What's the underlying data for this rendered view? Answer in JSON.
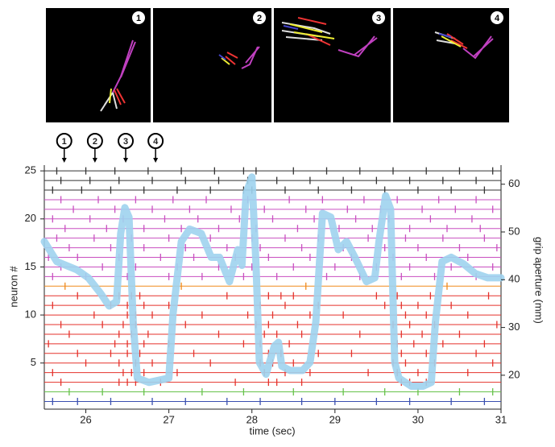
{
  "chart_data": {
    "type": "raster",
    "panels": [
      "1",
      "2",
      "3",
      "4"
    ],
    "events": [
      {
        "label": "1",
        "time": 25.74
      },
      {
        "label": "2",
        "time": 26.11
      },
      {
        "label": "3",
        "time": 26.48
      },
      {
        "label": "4",
        "time": 26.84
      }
    ],
    "xlabel": "time (sec)",
    "ylabel": "neuron #",
    "y2label": "grip aperture (mm)",
    "xlim": [
      25.5,
      31
    ],
    "xticks": [
      26,
      27,
      28,
      29,
      30,
      31
    ],
    "ylim": [
      0.2,
      25.6
    ],
    "yticks": [
      5,
      10,
      15,
      20,
      25
    ],
    "y2lim": [
      12.9,
      64
    ],
    "y2ticks": [
      20,
      30,
      40,
      50,
      60
    ],
    "neurons": [
      {
        "color": "#3a4fb0",
        "spikes": [
          25.6,
          25.9,
          26.3,
          26.8,
          27.2,
          27.7,
          28.1,
          28.6,
          29.0,
          29.5,
          29.9,
          30.4,
          30.8
        ]
      },
      {
        "color": "#66c24a",
        "spikes": [
          25.8,
          26.2,
          26.7,
          27.4,
          27.9,
          28.5,
          29.1,
          29.6,
          30.0,
          30.5,
          30.9
        ]
      },
      {
        "color": "#e5322b",
        "spikes": [
          25.7,
          26.4,
          26.5,
          26.6,
          26.9,
          27.8,
          28.2,
          28.3,
          28.6,
          29.8,
          29.9,
          30.1
        ]
      },
      {
        "color": "#e5322b",
        "spikes": [
          25.6,
          26.45,
          26.55,
          26.7,
          27.1,
          28.15,
          28.4,
          28.7,
          29.4,
          29.75,
          30.0,
          30.6
        ]
      },
      {
        "color": "#e5322b",
        "spikes": [
          26.0,
          26.4,
          26.6,
          26.8,
          27.5,
          28.1,
          28.25,
          28.5,
          29.7,
          29.85,
          30.2,
          30.9
        ]
      },
      {
        "color": "#e5322b",
        "spikes": [
          25.9,
          26.3,
          26.5,
          26.65,
          27.3,
          28.2,
          28.35,
          28.8,
          29.2,
          29.8,
          30.1,
          30.7
        ]
      },
      {
        "color": "#e5322b",
        "spikes": [
          25.55,
          26.35,
          26.5,
          26.7,
          27.0,
          27.9,
          28.1,
          28.45,
          29.75,
          29.95,
          30.3,
          30.8
        ]
      },
      {
        "color": "#e5322b",
        "spikes": [
          25.8,
          26.4,
          26.55,
          26.75,
          27.6,
          28.15,
          28.3,
          28.6,
          29.3,
          29.8,
          30.05,
          30.5
        ]
      },
      {
        "color": "#e5322b",
        "spikes": [
          25.7,
          26.2,
          26.45,
          26.6,
          27.2,
          28.05,
          28.2,
          28.55,
          29.7,
          29.9,
          30.2,
          30.95
        ]
      },
      {
        "color": "#e5322b",
        "spikes": [
          26.1,
          26.5,
          26.6,
          26.8,
          27.4,
          27.95,
          28.25,
          28.7,
          29.1,
          29.85,
          30.1,
          30.6
        ]
      },
      {
        "color": "#e5322b",
        "spikes": [
          25.6,
          26.3,
          26.5,
          26.7,
          27.0,
          28.1,
          28.4,
          28.8,
          29.6,
          29.8,
          30.0,
          30.4
        ]
      },
      {
        "color": "#e5322b",
        "spikes": [
          25.9,
          26.4,
          26.55,
          26.65,
          27.7,
          28.2,
          28.35,
          28.5,
          29.5,
          29.75,
          30.15,
          30.85
        ]
      },
      {
        "color": "#f08a1c",
        "spikes": [
          25.75,
          27.15,
          28.65,
          30.35
        ]
      },
      {
        "color": "#c94fc0",
        "spikes": [
          25.6,
          26.0,
          26.5,
          27.0,
          27.4,
          27.9,
          28.3,
          28.9,
          29.3,
          29.8,
          30.2,
          30.7
        ]
      },
      {
        "color": "#c94fc0",
        "spikes": [
          25.7,
          26.2,
          26.6,
          27.1,
          27.6,
          28.0,
          28.5,
          29.0,
          29.5,
          29.9,
          30.4,
          30.9
        ]
      },
      {
        "color": "#c94fc0",
        "spikes": [
          25.55,
          25.9,
          26.4,
          26.9,
          27.3,
          27.8,
          28.2,
          28.7,
          29.2,
          29.7,
          30.1,
          30.6
        ]
      },
      {
        "color": "#c94fc0",
        "spikes": [
          25.8,
          26.3,
          26.7,
          27.2,
          27.7,
          28.1,
          28.6,
          29.1,
          29.6,
          30.0,
          30.5,
          30.95
        ]
      },
      {
        "color": "#c94fc0",
        "spikes": [
          25.65,
          26.1,
          26.55,
          27.0,
          27.5,
          28.0,
          28.4,
          28.8,
          29.4,
          29.85,
          30.3,
          30.8
        ]
      },
      {
        "color": "#c94fc0",
        "spikes": [
          25.75,
          26.25,
          26.7,
          27.15,
          27.6,
          28.05,
          28.55,
          29.05,
          29.45,
          29.9,
          30.35,
          30.75
        ]
      },
      {
        "color": "#c94fc0",
        "spikes": [
          25.6,
          26.05,
          26.45,
          26.95,
          27.35,
          27.85,
          28.25,
          28.75,
          29.25,
          29.65,
          30.15,
          30.65
        ]
      },
      {
        "color": "#c94fc0",
        "spikes": [
          25.85,
          26.35,
          26.8,
          27.25,
          27.75,
          28.15,
          28.65,
          29.15,
          29.55,
          30.05,
          30.45,
          30.9
        ]
      },
      {
        "color": "#c94fc0",
        "spikes": [
          25.7,
          26.15,
          26.6,
          27.05,
          27.45,
          27.95,
          28.45,
          28.85,
          29.35,
          29.75,
          30.25,
          30.7
        ]
      },
      {
        "color": "#333333",
        "spikes": [
          25.6,
          25.95,
          26.3,
          26.7,
          27.1,
          27.5,
          27.9,
          28.0,
          28.4,
          28.8,
          29.2,
          29.6,
          30.0,
          30.4,
          30.8
        ]
      },
      {
        "color": "#333333",
        "spikes": [
          25.7,
          26.05,
          26.4,
          26.8,
          27.2,
          27.6,
          27.95,
          28.3,
          28.7,
          29.1,
          29.5,
          29.9,
          30.3,
          30.7
        ]
      },
      {
        "color": "#333333",
        "spikes": [
          25.65,
          26.0,
          26.35,
          26.75,
          27.15,
          27.55,
          27.9,
          28.05,
          28.5,
          28.9,
          29.3,
          29.7,
          30.1,
          30.5,
          30.9
        ]
      }
    ],
    "series": [
      {
        "color": "#9fd3ee",
        "axis": "y2",
        "x": [
          25.5,
          25.65,
          25.89,
          26.03,
          26.18,
          26.28,
          26.37,
          26.42,
          26.47,
          26.52,
          26.57,
          26.62,
          26.76,
          27.0,
          27.05,
          27.15,
          27.25,
          27.39,
          27.51,
          27.61,
          27.73,
          27.83,
          27.88,
          27.93,
          28.0,
          28.05,
          28.09,
          28.17,
          28.27,
          28.32,
          28.36,
          28.46,
          28.61,
          28.7,
          28.77,
          28.85,
          28.95,
          29.04,
          29.14,
          29.24,
          29.38,
          29.48,
          29.53,
          29.61,
          29.67,
          29.72,
          29.77,
          29.92,
          30.06,
          30.16,
          30.21,
          30.29,
          30.4,
          30.55,
          30.69,
          30.84,
          31.0
        ],
        "values": [
          48.0,
          43.8,
          42.1,
          40.4,
          37.1,
          34.5,
          35.4,
          49.7,
          55.1,
          53.1,
          31.2,
          19.4,
          18.5,
          19.4,
          32.8,
          48.0,
          50.6,
          49.7,
          44.7,
          44.7,
          39.6,
          46.3,
          43.0,
          58.1,
          61.5,
          43.0,
          22.7,
          20.2,
          26.1,
          26.9,
          21.9,
          21.0,
          21.0,
          22.7,
          31.2,
          53.9,
          53.1,
          46.3,
          48.0,
          44.7,
          39.6,
          40.4,
          48.0,
          57.6,
          54.8,
          22.7,
          19.4,
          17.7,
          17.7,
          18.5,
          31.2,
          43.8,
          44.7,
          43.3,
          41.3,
          40.4,
          40.4
        ]
      }
    ]
  }
}
